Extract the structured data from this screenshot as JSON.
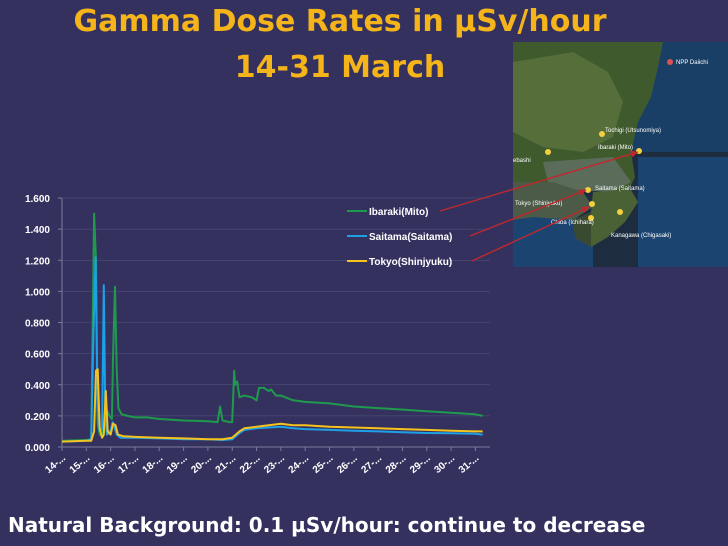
{
  "slide": {
    "title_line1": "Gamma Dose Rates in µSv/hour",
    "title_line2": "14-31 March",
    "footer": "Natural Background: 0.1 µSv/hour: continue to decrease"
  },
  "map": {
    "labels": [
      "NPP Daiichi",
      "Tochigi (Utsunomiya)",
      "Ibaraki (Mito)",
      "ebashi",
      "Saitama (Saitama)",
      "Tokyo (Shinjyuku)",
      "Chiba (Ichihara)",
      "Kanagawa (Chigasaki)"
    ]
  },
  "chart_data": {
    "type": "line",
    "title": "",
    "xlabel": "",
    "ylabel": "",
    "ylim": [
      0,
      1.6
    ],
    "yticks": [
      "0.000",
      "0.200",
      "0.400",
      "0.600",
      "0.800",
      "1.000",
      "1.200",
      "1.400",
      "1.600"
    ],
    "xlim": [
      14,
      31.6
    ],
    "categories": [
      "14-...",
      "15-...",
      "16-...",
      "17-...",
      "18-...",
      "19-...",
      "20-...",
      "21-...",
      "22-...",
      "23-...",
      "24-...",
      "25-...",
      "26-...",
      "27-...",
      "28-...",
      "29-...",
      "30-...",
      "31-..."
    ],
    "legend_position": "top-right",
    "series": [
      {
        "name": "Ibaraki(Mito)",
        "color": "#1f9a4c",
        "x": [
          14,
          15.0,
          15.2,
          15.32,
          15.4,
          15.47,
          15.55,
          15.65,
          15.8,
          15.95,
          16.05,
          16.1,
          16.18,
          16.25,
          16.32,
          16.45,
          16.7,
          17.0,
          17.5,
          18,
          19,
          20,
          20.4,
          20.5,
          20.6,
          20.9,
          21.0,
          21.08,
          21.12,
          21.2,
          21.3,
          21.5,
          21.8,
          22.0,
          22.1,
          22.3,
          22.5,
          22.6,
          22.8,
          23.0,
          23.5,
          24,
          25,
          26,
          27,
          28,
          29,
          30,
          31,
          31.3
        ],
        "y": [
          0.04,
          0.045,
          0.05,
          1.5,
          1.2,
          0.15,
          0.08,
          0.07,
          0.25,
          0.2,
          0.18,
          0.6,
          1.03,
          0.5,
          0.25,
          0.21,
          0.2,
          0.19,
          0.19,
          0.18,
          0.17,
          0.165,
          0.16,
          0.26,
          0.17,
          0.16,
          0.16,
          0.49,
          0.4,
          0.42,
          0.32,
          0.33,
          0.32,
          0.3,
          0.38,
          0.38,
          0.36,
          0.37,
          0.33,
          0.33,
          0.3,
          0.29,
          0.28,
          0.26,
          0.25,
          0.24,
          0.23,
          0.22,
          0.21,
          0.2
        ]
      },
      {
        "name": "Saitama(Saitama)",
        "color": "#1ea0e6",
        "x": [
          14,
          15.0,
          15.2,
          15.3,
          15.38,
          15.46,
          15.55,
          15.65,
          15.72,
          15.78,
          15.85,
          15.95,
          16.0,
          16.08,
          16.15,
          16.25,
          16.4,
          17,
          18,
          19,
          20,
          20.6,
          21.0,
          21.3,
          21.5,
          22.0,
          23.0,
          23.5,
          24,
          25,
          26,
          27,
          28,
          29,
          30,
          31,
          31.3
        ],
        "y": [
          0.035,
          0.04,
          0.05,
          0.76,
          1.22,
          0.25,
          0.1,
          0.12,
          1.04,
          0.2,
          0.08,
          0.1,
          0.1,
          0.16,
          0.13,
          0.08,
          0.06,
          0.06,
          0.055,
          0.05,
          0.05,
          0.045,
          0.05,
          0.09,
          0.11,
          0.12,
          0.13,
          0.12,
          0.115,
          0.11,
          0.105,
          0.1,
          0.095,
          0.09,
          0.088,
          0.085,
          0.08
        ]
      },
      {
        "name": "Tokyo(Shinjyuku)",
        "color": "#f6c21c",
        "x": [
          14,
          15.0,
          15.2,
          15.32,
          15.4,
          15.47,
          15.55,
          15.65,
          15.72,
          15.8,
          15.88,
          16.0,
          16.1,
          16.2,
          16.3,
          16.5,
          17,
          18,
          19,
          20,
          20.6,
          21.0,
          21.3,
          21.5,
          22.0,
          23.0,
          23.5,
          24,
          25,
          26,
          27,
          28,
          29,
          30,
          31,
          31.3
        ],
        "y": [
          0.035,
          0.04,
          0.04,
          0.1,
          0.49,
          0.5,
          0.12,
          0.06,
          0.08,
          0.36,
          0.1,
          0.08,
          0.15,
          0.14,
          0.08,
          0.07,
          0.065,
          0.06,
          0.055,
          0.05,
          0.05,
          0.06,
          0.1,
          0.12,
          0.13,
          0.15,
          0.14,
          0.14,
          0.13,
          0.125,
          0.12,
          0.115,
          0.11,
          0.105,
          0.1,
          0.1
        ]
      }
    ]
  }
}
